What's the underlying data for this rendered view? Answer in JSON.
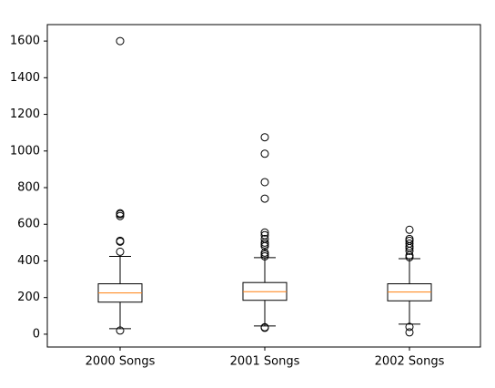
{
  "chart_data": {
    "type": "boxplot",
    "categories": [
      "2000 Songs",
      "2001 Songs",
      "2002 Songs"
    ],
    "ylim": [
      -70,
      1690
    ],
    "yticks": [
      0,
      200,
      400,
      600,
      800,
      1000,
      1200,
      1400,
      1600
    ],
    "ytick_labels": [
      "0",
      "200",
      "400",
      "600",
      "800",
      "1000",
      "1200",
      "1400",
      "1600"
    ],
    "boxes": [
      {
        "whisker_low": 30,
        "q1": 175,
        "median": 225,
        "q3": 275,
        "whisker_high": 425,
        "outliers": [
          20,
          450,
          505,
          510,
          645,
          655,
          660,
          1600
        ]
      },
      {
        "whisker_low": 45,
        "q1": 185,
        "median": 232,
        "q3": 282,
        "whisker_high": 418,
        "outliers": [
          35,
          38,
          425,
          435,
          445,
          480,
          490,
          500,
          520,
          540,
          555,
          740,
          830,
          985,
          1075
        ]
      },
      {
        "whisker_low": 55,
        "q1": 182,
        "median": 230,
        "q3": 275,
        "whisker_high": 412,
        "outliers": [
          10,
          40,
          420,
          430,
          455,
          470,
          480,
          495,
          510,
          520,
          570
        ]
      }
    ],
    "colors": {
      "box": "#000000",
      "median": "#ff7f0e",
      "outlier": "#000000"
    },
    "grid": false,
    "title": "",
    "xlabel": "",
    "ylabel": ""
  }
}
